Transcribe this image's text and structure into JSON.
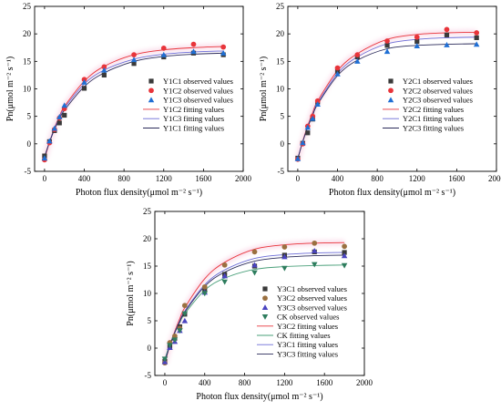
{
  "chart_data": [
    {
      "type": "scatter",
      "xlabel": "Photon flux density(μmol m⁻² s⁻¹)",
      "ylabel": "Pn(μmol m⁻² s⁻¹)",
      "xlim": [
        -100,
        2000
      ],
      "ylim": [
        -5,
        25
      ],
      "xticks": [
        0,
        400,
        800,
        1200,
        1600,
        2000
      ],
      "yticks": [
        -5,
        0,
        5,
        10,
        15,
        20,
        25
      ],
      "x": [
        0,
        50,
        100,
        150,
        200,
        400,
        600,
        900,
        1200,
        1500,
        1800
      ],
      "legend_position": "center-right",
      "series": [
        {
          "name": "Y1C1 observed values",
          "kind": "observed",
          "marker": "square",
          "color": "#3a3a3a",
          "values": [
            -2.2,
            0.4,
            2.4,
            3.8,
            5.2,
            10.1,
            12.5,
            14.6,
            15.8,
            16.5,
            16.2
          ]
        },
        {
          "name": "Y1C2 observed values",
          "kind": "observed",
          "marker": "circle",
          "color": "#e8343a",
          "values": [
            -2.9,
            0.2,
            2.6,
            4.7,
            6.4,
            11.7,
            14.0,
            16.2,
            17.4,
            18.1,
            17.6
          ]
        },
        {
          "name": "Y1C3 observed values",
          "kind": "observed",
          "marker": "triangle",
          "color": "#1f6fd4",
          "values": [
            -2.6,
            0.5,
            2.8,
            4.9,
            7.0,
            11.2,
            13.4,
            15.3,
            16.2,
            16.8,
            16.5
          ]
        },
        {
          "name": "Y1C2 fitting values",
          "kind": "fit",
          "color": "#e8343a",
          "values": [
            -2.8,
            0.3,
            2.9,
            5.0,
            6.8,
            11.4,
            14.1,
            16.2,
            17.1,
            17.5,
            17.7
          ]
        },
        {
          "name": "Y1C3 fitting values",
          "kind": "fit",
          "color": "#6b6bd6",
          "values": [
            -2.5,
            0.4,
            2.8,
            4.8,
            6.5,
            10.9,
            13.4,
            15.4,
            16.3,
            16.7,
            16.9
          ]
        },
        {
          "name": "Y1C1 fitting values",
          "kind": "fit",
          "color": "#2a2a5a",
          "values": [
            -2.3,
            0.3,
            2.6,
            4.5,
            6.1,
            10.4,
            12.9,
            15.0,
            15.9,
            16.3,
            16.5
          ]
        }
      ]
    },
    {
      "type": "scatter",
      "xlabel": "Photon flux density(μmol m⁻² s⁻¹)",
      "ylabel": "Pn(μmol m⁻² s⁻¹)",
      "xlim": [
        -100,
        2000
      ],
      "ylim": [
        -5,
        25
      ],
      "xticks": [
        0,
        400,
        800,
        1200,
        1600,
        2000
      ],
      "yticks": [
        -5,
        0,
        5,
        10,
        15,
        20,
        25
      ],
      "x": [
        0,
        50,
        100,
        150,
        200,
        400,
        600,
        900,
        1200,
        1500,
        1800
      ],
      "legend_position": "center-right",
      "series": [
        {
          "name": "Y2C1 observed values",
          "kind": "observed",
          "marker": "square",
          "color": "#3a3a3a",
          "values": [
            -2.6,
            0.1,
            2.0,
            4.5,
            7.6,
            13.2,
            15.8,
            17.9,
            18.6,
            19.8,
            19.3
          ]
        },
        {
          "name": "Y2C2 observed values",
          "kind": "observed",
          "marker": "circle",
          "color": "#e8343a",
          "values": [
            -2.8,
            0.0,
            3.2,
            5.0,
            7.8,
            13.8,
            16.2,
            18.7,
            19.4,
            20.8,
            20.2
          ]
        },
        {
          "name": "Y2C3 observed values",
          "kind": "observed",
          "marker": "triangle",
          "color": "#1f6fd4",
          "values": [
            -2.7,
            0.2,
            3.0,
            4.6,
            7.2,
            12.7,
            15.0,
            16.8,
            17.8,
            18.0,
            18.1
          ]
        },
        {
          "name": "Y2C2 fitting values",
          "kind": "fit",
          "color": "#e8343a",
          "values": [
            -2.8,
            0.5,
            3.3,
            5.7,
            7.8,
            13.3,
            16.4,
            19.0,
            19.9,
            20.2,
            20.3
          ]
        },
        {
          "name": "Y2C1 fitting values",
          "kind": "fit",
          "color": "#6b6bd6",
          "values": [
            -2.6,
            0.4,
            3.1,
            5.4,
            7.4,
            12.8,
            15.8,
            18.2,
            19.0,
            19.3,
            19.4
          ]
        },
        {
          "name": "Y2C3 fitting values",
          "kind": "fit",
          "color": "#2a2a5a",
          "values": [
            -2.7,
            0.4,
            3.0,
            5.2,
            7.2,
            12.4,
            15.2,
            17.3,
            17.9,
            18.1,
            18.2
          ]
        }
      ]
    },
    {
      "type": "scatter",
      "xlabel": "Photon flux density(μmol m⁻² s⁻¹)",
      "ylabel": "Pn(μmol m⁻² s⁻¹)",
      "xlim": [
        -100,
        2000
      ],
      "ylim": [
        -5,
        25
      ],
      "xticks": [
        0,
        400,
        800,
        1200,
        1600,
        2000
      ],
      "yticks": [
        -5,
        0,
        5,
        10,
        15,
        20,
        25
      ],
      "x": [
        0,
        50,
        100,
        150,
        200,
        400,
        600,
        900,
        1200,
        1500,
        1800
      ],
      "legend_position": "center-right",
      "series": [
        {
          "name": "Y3C1 observed values",
          "kind": "observed",
          "marker": "square",
          "color": "#3a3a3a",
          "values": [
            -2.4,
            0.3,
            1.8,
            3.9,
            6.2,
            10.5,
            13.5,
            15.0,
            17.0,
            17.6,
            17.5
          ]
        },
        {
          "name": "Y3C2 observed values",
          "kind": "observed",
          "marker": "circle",
          "color": "#9a7040",
          "values": [
            -2.7,
            1.0,
            2.2,
            3.6,
            7.8,
            11.2,
            15.2,
            17.6,
            18.5,
            19.2,
            18.6
          ]
        },
        {
          "name": "Y3C3 observed values",
          "kind": "observed",
          "marker": "triangle",
          "color": "#4a44c0",
          "values": [
            -2.5,
            0.1,
            1.2,
            3.2,
            5.0,
            10.2,
            13.2,
            15.2,
            16.7,
            17.8,
            16.9
          ]
        },
        {
          "name": "CK observed values",
          "kind": "observed",
          "marker": "triangle-down",
          "color": "#2e7d5e",
          "values": [
            -2.0,
            0.5,
            1.5,
            3.2,
            6.3,
            10.0,
            12.1,
            13.8,
            14.6,
            15.3,
            15.1
          ]
        },
        {
          "name": "Y3C2 fitting values",
          "kind": "fit",
          "color": "#e8343a",
          "values": [
            -2.8,
            0.5,
            3.1,
            5.4,
            7.4,
            12.7,
            15.7,
            18.1,
            18.9,
            19.2,
            19.3
          ]
        },
        {
          "name": "CK fitting values",
          "kind": "fit",
          "color": "#4aa07a",
          "values": [
            -2.0,
            0.7,
            2.9,
            4.7,
            6.3,
            10.6,
            12.8,
            14.4,
            14.9,
            15.1,
            15.2
          ]
        },
        {
          "name": "Y3C1 fitting values",
          "kind": "fit",
          "color": "#6b6bd6",
          "values": [
            -2.4,
            0.5,
            2.9,
            5.0,
            6.8,
            11.6,
            14.3,
            16.4,
            17.1,
            17.4,
            17.5
          ]
        },
        {
          "name": "Y3C3 fitting values",
          "kind": "fit",
          "color": "#2a2a5a",
          "values": [
            -2.5,
            0.4,
            2.8,
            4.8,
            6.6,
            11.3,
            13.9,
            15.9,
            16.6,
            16.9,
            17.0
          ]
        }
      ]
    }
  ]
}
